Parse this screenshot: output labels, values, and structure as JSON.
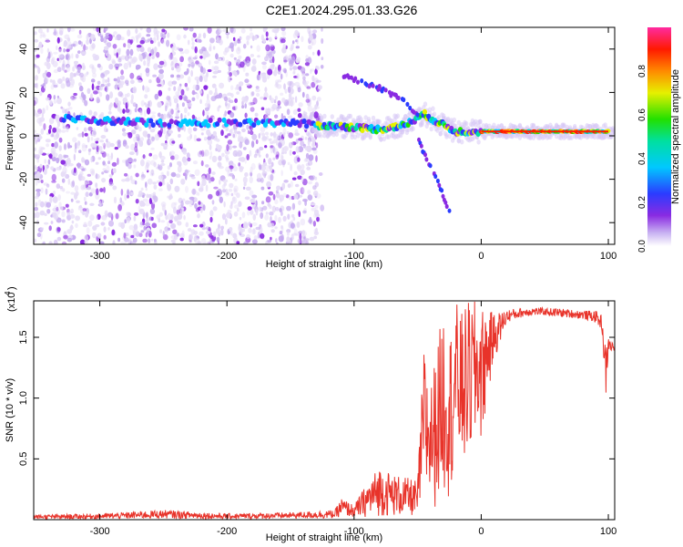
{
  "title": "C2E1.2024.295.01.33.G26",
  "chart_data": [
    {
      "type": "heatmap",
      "name": "spectrogram",
      "xlabel": "Height of straight line (km)",
      "ylabel": "Frequency (Hz)",
      "xlim": [
        -352,
        105
      ],
      "ylim": [
        -50,
        50
      ],
      "xticks": [
        -300,
        -200,
        -100,
        0,
        100
      ],
      "yticks": [
        -40,
        -20,
        0,
        20,
        40
      ],
      "colorbar": {
        "label": "Normalized spectral amplitude",
        "ticks": [
          0.0,
          0.2,
          0.4,
          0.6,
          0.8
        ],
        "range": [
          0,
          1
        ],
        "colormap": "rainbow"
      },
      "features": {
        "main_line": [
          [
            -330,
            8
          ],
          [
            -300,
            7
          ],
          [
            -250,
            6
          ],
          [
            -200,
            6
          ],
          [
            -150,
            6
          ],
          [
            -130,
            5
          ],
          [
            -100,
            4
          ],
          [
            -80,
            3
          ],
          [
            -60,
            5
          ],
          [
            -45,
            10
          ],
          [
            -30,
            5
          ],
          [
            -20,
            2
          ],
          [
            0,
            2
          ],
          [
            50,
            2
          ],
          [
            100,
            2
          ]
        ],
        "upper_branch": [
          [
            -110,
            28
          ],
          [
            -80,
            22
          ],
          [
            -60,
            16
          ],
          [
            -50,
            10
          ]
        ],
        "lower_branch": [
          [
            -50,
            0
          ],
          [
            -45,
            -8
          ],
          [
            -35,
            -20
          ],
          [
            -25,
            -35
          ]
        ],
        "noise_region_x": [
          -352,
          -125
        ]
      }
    },
    {
      "type": "line",
      "name": "snr",
      "xlabel": "Height of straight line (km)",
      "ylabel": "SNR (10 * v/v)",
      "yscale_label": "(x10",
      "yscale_exponent": "4",
      "xlim": [
        -352,
        105
      ],
      "ylim": [
        0,
        1.8
      ],
      "xticks": [
        -300,
        -200,
        -100,
        0,
        100
      ],
      "yticks": [
        0.5,
        1.0,
        1.5
      ],
      "color": "#e8332a",
      "series": [
        {
          "x": [
            -352,
            -300,
            -250,
            -200,
            -150,
            -115,
            -110,
            -100,
            -90,
            -80,
            -70,
            -60,
            -50,
            -45,
            -40,
            -35,
            -30,
            -25,
            -20,
            -15,
            -10,
            -5,
            0,
            10,
            20,
            30,
            40,
            50,
            60,
            70,
            80,
            90,
            95,
            98,
            100,
            105
          ],
          "y": [
            0.02,
            0.02,
            0.03,
            0.02,
            0.03,
            0.04,
            0.12,
            0.06,
            0.12,
            0.28,
            0.25,
            0.22,
            0.18,
            0.6,
            0.9,
            0.75,
            1.2,
            0.9,
            1.5,
            1.1,
            1.6,
            1.3,
            1.1,
            1.55,
            1.68,
            1.7,
            1.72,
            1.72,
            1.71,
            1.7,
            1.7,
            1.68,
            1.65,
            1.05,
            1.45,
            1.42
          ],
          "envelope_high": [
            0.04,
            0.05,
            0.08,
            0.05,
            0.06,
            0.08,
            0.18,
            0.12,
            0.3,
            0.45,
            0.38,
            0.35,
            0.32,
            1.45,
            1.1,
            1.4,
            1.75,
            1.5,
            1.8,
            1.7,
            1.8,
            1.8,
            1.75,
            1.7,
            1.73,
            1.74,
            1.75,
            1.74,
            1.74,
            1.73,
            1.72,
            1.72,
            1.68,
            1.4,
            1.5,
            1.45
          ],
          "envelope_low": [
            0.005,
            0.005,
            0.01,
            0.005,
            0.01,
            0.01,
            0.03,
            0.02,
            0.02,
            0.03,
            0.03,
            0.03,
            0.03,
            0.05,
            0.08,
            0.1,
            0.15,
            0.2,
            0.3,
            0.35,
            0.4,
            0.5,
            0.6,
            1.3,
            1.62,
            1.66,
            1.68,
            1.68,
            1.67,
            1.66,
            1.65,
            1.62,
            1.55,
            1.0,
            1.38,
            1.38
          ]
        }
      ]
    }
  ]
}
